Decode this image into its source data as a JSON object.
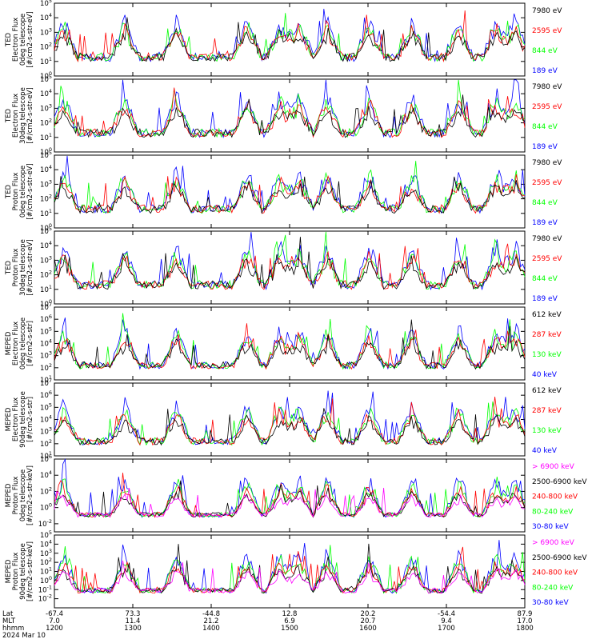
{
  "colors": {
    "black": "#000000",
    "red": "#ff0000",
    "green": "#00ff00",
    "blue": "#0000ff",
    "magenta": "#ff00ff"
  },
  "chart_data": [
    {
      "type": "line",
      "panel": 1,
      "ylabel": [
        "TED",
        "Electron Flux",
        "0deg telescope",
        "[#/cm2-s-str-eV]"
      ],
      "yticks": [
        {
          "e": 0,
          "v": "10^0"
        },
        {
          "e": 1,
          "v": "10^1"
        },
        {
          "e": 2,
          "v": "10^2"
        },
        {
          "e": 3,
          "v": "10^3"
        },
        {
          "e": 4,
          "v": "10^4"
        },
        {
          "e": 5,
          "v": "10^5"
        }
      ],
      "ylim": [
        0,
        5
      ],
      "log": true,
      "legend": [
        {
          "name": "7980 eV",
          "color": "#000000"
        },
        {
          "name": "2595 eV",
          "color": "#ff0000"
        },
        {
          "name": "844 eV",
          "color": "#00ff00"
        },
        {
          "name": "189 eV",
          "color": "#0000ff"
        }
      ]
    },
    {
      "type": "line",
      "panel": 2,
      "ylabel": [
        "TED",
        "Electron Flux",
        "30deg telescope",
        "[#/cm2-s-str-eV]"
      ],
      "yticks": [
        {
          "e": 0,
          "v": "10^0"
        },
        {
          "e": 1,
          "v": "10^1"
        },
        {
          "e": 2,
          "v": "10^2"
        },
        {
          "e": 3,
          "v": "10^3"
        },
        {
          "e": 4,
          "v": "10^4"
        },
        {
          "e": 5,
          "v": "10^5"
        }
      ],
      "ylim": [
        0,
        5
      ],
      "log": true,
      "legend": [
        {
          "name": "7980 eV",
          "color": "#000000"
        },
        {
          "name": "2595 eV",
          "color": "#ff0000"
        },
        {
          "name": "844 eV",
          "color": "#00ff00"
        },
        {
          "name": "189 eV",
          "color": "#0000ff"
        }
      ]
    },
    {
      "type": "line",
      "panel": 3,
      "ylabel": [
        "TED",
        "Proton Flux",
        "0deg telescope",
        "[#/cm2-s-str-eV]"
      ],
      "yticks": [
        {
          "e": 0,
          "v": "10^0"
        },
        {
          "e": 1,
          "v": "10^1"
        },
        {
          "e": 2,
          "v": "10^2"
        },
        {
          "e": 3,
          "v": "10^3"
        },
        {
          "e": 4,
          "v": "10^4"
        },
        {
          "e": 5,
          "v": "10^5"
        }
      ],
      "ylim": [
        0,
        5
      ],
      "log": true,
      "legend": [
        {
          "name": "7980 eV",
          "color": "#000000"
        },
        {
          "name": "2595 eV",
          "color": "#ff0000"
        },
        {
          "name": "844 eV",
          "color": "#00ff00"
        },
        {
          "name": "189 eV",
          "color": "#0000ff"
        }
      ]
    },
    {
      "type": "line",
      "panel": 4,
      "ylabel": [
        "TED",
        "Proton Flux",
        "30deg telescope",
        "[#/cm2-s-str-eV]"
      ],
      "yticks": [
        {
          "e": 0,
          "v": "10^0"
        },
        {
          "e": 1,
          "v": "10^1"
        },
        {
          "e": 2,
          "v": "10^2"
        },
        {
          "e": 3,
          "v": "10^3"
        },
        {
          "e": 4,
          "v": "10^4"
        },
        {
          "e": 5,
          "v": "10^5"
        }
      ],
      "ylim": [
        0,
        5
      ],
      "log": true,
      "legend": [
        {
          "name": "7980 eV",
          "color": "#000000"
        },
        {
          "name": "2595 eV",
          "color": "#ff0000"
        },
        {
          "name": "844 eV",
          "color": "#00ff00"
        },
        {
          "name": "189 eV",
          "color": "#0000ff"
        }
      ]
    },
    {
      "type": "line",
      "panel": 5,
      "ylabel": [
        "MEPED",
        "Electron Flux",
        "0deg telescope",
        "[#/cm2-s-str]"
      ],
      "yticks": [
        {
          "e": 1,
          "v": "10^1"
        },
        {
          "e": 2,
          "v": "10^2"
        },
        {
          "e": 3,
          "v": "10^3"
        },
        {
          "e": 4,
          "v": "10^4"
        },
        {
          "e": 5,
          "v": "10^5"
        },
        {
          "e": 6,
          "v": "10^6"
        },
        {
          "e": 7,
          "v": "10^7"
        }
      ],
      "ylim": [
        1,
        7
      ],
      "log": true,
      "legend": [
        {
          "name": "612 keV",
          "color": "#000000"
        },
        {
          "name": "287 keV",
          "color": "#ff0000"
        },
        {
          "name": "130 keV",
          "color": "#00ff00"
        },
        {
          "name": "40 keV",
          "color": "#0000ff"
        }
      ]
    },
    {
      "type": "line",
      "panel": 6,
      "ylabel": [
        "MEPED",
        "Electron Flux",
        "90deg telescope",
        "[#/cm2-s-str]"
      ],
      "yticks": [
        {
          "e": 1,
          "v": "10^1"
        },
        {
          "e": 2,
          "v": "10^2"
        },
        {
          "e": 3,
          "v": "10^3"
        },
        {
          "e": 4,
          "v": "10^4"
        },
        {
          "e": 5,
          "v": "10^5"
        },
        {
          "e": 6,
          "v": "10^6"
        },
        {
          "e": 7,
          "v": "10^7"
        }
      ],
      "ylim": [
        1,
        7
      ],
      "log": true,
      "legend": [
        {
          "name": "612 keV",
          "color": "#000000"
        },
        {
          "name": "287 keV",
          "color": "#ff0000"
        },
        {
          "name": "130 keV",
          "color": "#00ff00"
        },
        {
          "name": "40 keV",
          "color": "#0000ff"
        }
      ]
    },
    {
      "type": "line",
      "panel": 7,
      "ylabel": [
        "MEPED",
        "Proton Flux",
        "0deg telescope",
        "[#/cm2-s-str-keV]"
      ],
      "yticks": [
        {
          "e": -2,
          "v": "10^-2"
        },
        {
          "e": 0,
          "v": "10^0"
        },
        {
          "e": 2,
          "v": "10^2"
        },
        {
          "e": 4,
          "v": "10^4"
        },
        {
          "e": 6,
          "v": "10^6"
        }
      ],
      "ylim": [
        -3,
        6
      ],
      "log": true,
      "legend": [
        {
          "name": "> 6900 keV",
          "color": "#ff00ff"
        },
        {
          "name": "2500-6900 keV",
          "color": "#000000"
        },
        {
          "name": "240-800 keV",
          "color": "#ff0000"
        },
        {
          "name": "80-240 keV",
          "color": "#00ff00"
        },
        {
          "name": "30-80 keV",
          "color": "#0000ff"
        }
      ]
    },
    {
      "type": "line",
      "panel": 8,
      "ylabel": [
        "MEPED",
        "Proton Flux",
        "90deg telescope",
        "[#/cm2-s-str-keV]"
      ],
      "yticks": [
        {
          "e": -2,
          "v": "10^-2"
        },
        {
          "e": -1,
          "v": "10^-1"
        },
        {
          "e": 0,
          "v": "10^0"
        },
        {
          "e": 1,
          "v": "10^1"
        },
        {
          "e": 2,
          "v": "10^2"
        },
        {
          "e": 3,
          "v": "10^3"
        },
        {
          "e": 4,
          "v": "10^4"
        },
        {
          "e": 5,
          "v": "10^5"
        }
      ],
      "ylim": [
        -3,
        5
      ],
      "log": true,
      "legend": [
        {
          "name": "> 6900 keV",
          "color": "#ff00ff"
        },
        {
          "name": "2500-6900 keV",
          "color": "#000000"
        },
        {
          "name": "240-800 keV",
          "color": "#ff0000"
        },
        {
          "name": "80-240 keV",
          "color": "#00ff00"
        },
        {
          "name": "30-80 keV",
          "color": "#0000ff"
        }
      ]
    }
  ],
  "xaxis": {
    "row_labels": [
      "Lat",
      "MLT",
      "hhmm",
      "2024 Mar 10"
    ],
    "ticks": [
      {
        "lat": "-67.4",
        "mlt": "7.0",
        "hhmm": "1200"
      },
      {
        "lat": "73.3",
        "mlt": "11.4",
        "hhmm": "1300"
      },
      {
        "lat": "-44.8",
        "mlt": "21.2",
        "hhmm": "1400"
      },
      {
        "lat": "12.8",
        "mlt": "6.9",
        "hhmm": "1500"
      },
      {
        "lat": "20.2",
        "mlt": "20.7",
        "hhmm": "1600"
      },
      {
        "lat": "-54.4",
        "mlt": "9.4",
        "hhmm": "1700"
      },
      {
        "lat": "87.9",
        "mlt": "17.0",
        "hhmm": "1800"
      }
    ]
  }
}
